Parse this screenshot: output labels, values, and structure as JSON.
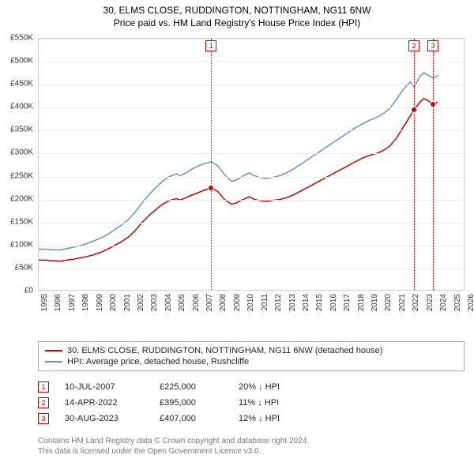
{
  "title": {
    "line1": "30, ELMS CLOSE, RUDDINGTON, NOTTINGHAM, NG11 6NW",
    "line2": "Price paid vs. HM Land Registry's House Price Index (HPI)"
  },
  "chart": {
    "type": "line",
    "background_color": "#ffffff",
    "grid_color": "#eeeeee",
    "border_color": "#cccccc",
    "y": {
      "min": 0,
      "max": 550000,
      "step": 50000,
      "labels": [
        "£0",
        "£50K",
        "£100K",
        "£150K",
        "£200K",
        "£250K",
        "£300K",
        "£350K",
        "£400K",
        "£450K",
        "£500K",
        "£550K"
      ],
      "label_fontsize": 10,
      "label_color": "#333333"
    },
    "x": {
      "min": 1995,
      "max": 2026,
      "step": 1,
      "labels": [
        "1995",
        "1996",
        "1997",
        "1998",
        "1999",
        "2000",
        "2001",
        "2002",
        "2003",
        "2004",
        "2005",
        "2006",
        "2007",
        "2008",
        "2009",
        "2010",
        "2011",
        "2012",
        "2013",
        "2014",
        "2015",
        "2016",
        "2017",
        "2018",
        "2019",
        "2020",
        "2021",
        "2022",
        "2023",
        "2024",
        "2025",
        "2026"
      ],
      "label_fontsize": 10,
      "label_color": "#333333"
    },
    "markers": [
      {
        "num": "1",
        "year": 2007.52,
        "color": "#cc0000"
      },
      {
        "num": "2",
        "year": 2022.28,
        "color": "#cc0000"
      },
      {
        "num": "3",
        "year": 2023.66,
        "color": "#cc0000"
      }
    ],
    "series": [
      {
        "name": "price_paid",
        "color": "#cc0000",
        "width": 1.5,
        "points": [
          [
            1995.0,
            68000
          ],
          [
            1995.5,
            68000
          ],
          [
            1996.0,
            67000
          ],
          [
            1996.5,
            66000
          ],
          [
            1997.0,
            68000
          ],
          [
            1997.5,
            70000
          ],
          [
            1998.0,
            73000
          ],
          [
            1998.5,
            76000
          ],
          [
            1999.0,
            80000
          ],
          [
            1999.5,
            85000
          ],
          [
            2000.0,
            92000
          ],
          [
            2000.5,
            100000
          ],
          [
            2001.0,
            108000
          ],
          [
            2001.5,
            118000
          ],
          [
            2002.0,
            132000
          ],
          [
            2002.5,
            150000
          ],
          [
            2003.0,
            165000
          ],
          [
            2003.5,
            178000
          ],
          [
            2004.0,
            190000
          ],
          [
            2004.5,
            198000
          ],
          [
            2005.0,
            202000
          ],
          [
            2005.3,
            199000
          ],
          [
            2005.7,
            204000
          ],
          [
            2006.0,
            208000
          ],
          [
            2006.5,
            214000
          ],
          [
            2007.0,
            220000
          ],
          [
            2007.52,
            225000
          ],
          [
            2008.0,
            218000
          ],
          [
            2008.5,
            200000
          ],
          [
            2009.0,
            190000
          ],
          [
            2009.3,
            192000
          ],
          [
            2009.7,
            198000
          ],
          [
            2010.0,
            202000
          ],
          [
            2010.3,
            206000
          ],
          [
            2010.7,
            200000
          ],
          [
            2011.0,
            198000
          ],
          [
            2011.5,
            196000
          ],
          [
            2012.0,
            198000
          ],
          [
            2012.5,
            200000
          ],
          [
            2013.0,
            204000
          ],
          [
            2013.5,
            210000
          ],
          [
            2014.0,
            218000
          ],
          [
            2014.5,
            226000
          ],
          [
            2015.0,
            234000
          ],
          [
            2015.5,
            242000
          ],
          [
            2016.0,
            250000
          ],
          [
            2016.5,
            258000
          ],
          [
            2017.0,
            266000
          ],
          [
            2017.5,
            274000
          ],
          [
            2018.0,
            282000
          ],
          [
            2018.5,
            290000
          ],
          [
            2019.0,
            296000
          ],
          [
            2019.5,
            300000
          ],
          [
            2020.0,
            306000
          ],
          [
            2020.5,
            316000
          ],
          [
            2021.0,
            334000
          ],
          [
            2021.5,
            358000
          ],
          [
            2022.0,
            382000
          ],
          [
            2022.28,
            395000
          ],
          [
            2022.7,
            412000
          ],
          [
            2023.0,
            420000
          ],
          [
            2023.3,
            415000
          ],
          [
            2023.66,
            407000
          ],
          [
            2024.0,
            412000
          ]
        ]
      },
      {
        "name": "hpi",
        "color": "#6a8fc7",
        "width": 1.5,
        "points": [
          [
            1995.0,
            92000
          ],
          [
            1995.5,
            92000
          ],
          [
            1996.0,
            91000
          ],
          [
            1996.5,
            90000
          ],
          [
            1997.0,
            93000
          ],
          [
            1997.5,
            96000
          ],
          [
            1998.0,
            100000
          ],
          [
            1998.5,
            104000
          ],
          [
            1999.0,
            110000
          ],
          [
            1999.5,
            116000
          ],
          [
            2000.0,
            124000
          ],
          [
            2000.5,
            134000
          ],
          [
            2001.0,
            144000
          ],
          [
            2001.5,
            156000
          ],
          [
            2002.0,
            172000
          ],
          [
            2002.5,
            192000
          ],
          [
            2003.0,
            210000
          ],
          [
            2003.5,
            226000
          ],
          [
            2004.0,
            240000
          ],
          [
            2004.5,
            250000
          ],
          [
            2005.0,
            256000
          ],
          [
            2005.3,
            252000
          ],
          [
            2005.7,
            258000
          ],
          [
            2006.0,
            264000
          ],
          [
            2006.5,
            272000
          ],
          [
            2007.0,
            278000
          ],
          [
            2007.52,
            282000
          ],
          [
            2008.0,
            274000
          ],
          [
            2008.5,
            254000
          ],
          [
            2009.0,
            240000
          ],
          [
            2009.3,
            242000
          ],
          [
            2009.7,
            248000
          ],
          [
            2010.0,
            254000
          ],
          [
            2010.3,
            258000
          ],
          [
            2010.7,
            252000
          ],
          [
            2011.0,
            248000
          ],
          [
            2011.5,
            246000
          ],
          [
            2012.0,
            248000
          ],
          [
            2012.5,
            252000
          ],
          [
            2013.0,
            258000
          ],
          [
            2013.5,
            266000
          ],
          [
            2014.0,
            276000
          ],
          [
            2014.5,
            286000
          ],
          [
            2015.0,
            296000
          ],
          [
            2015.5,
            306000
          ],
          [
            2016.0,
            316000
          ],
          [
            2016.5,
            326000
          ],
          [
            2017.0,
            336000
          ],
          [
            2017.5,
            346000
          ],
          [
            2018.0,
            356000
          ],
          [
            2018.5,
            364000
          ],
          [
            2019.0,
            372000
          ],
          [
            2019.5,
            378000
          ],
          [
            2020.0,
            386000
          ],
          [
            2020.5,
            398000
          ],
          [
            2021.0,
            418000
          ],
          [
            2021.5,
            440000
          ],
          [
            2022.0,
            456000
          ],
          [
            2022.28,
            444000
          ],
          [
            2022.7,
            468000
          ],
          [
            2023.0,
            476000
          ],
          [
            2023.3,
            470000
          ],
          [
            2023.66,
            464000
          ],
          [
            2024.0,
            470000
          ]
        ]
      }
    ],
    "dots": [
      {
        "year": 2007.52,
        "value": 225000,
        "color": "#cc0000"
      },
      {
        "year": 2022.28,
        "value": 395000,
        "color": "#cc0000"
      },
      {
        "year": 2023.66,
        "value": 407000,
        "color": "#cc0000"
      }
    ]
  },
  "legend": {
    "items": [
      {
        "color": "#cc0000",
        "label": "30, ELMS CLOSE, RUDDINGTON, NOTTINGHAM, NG11 6NW (detached house)"
      },
      {
        "color": "#6a8fc7",
        "label": "HPI: Average price, detached house, Rushcliffe"
      }
    ]
  },
  "events": [
    {
      "num": "1",
      "date": "10-JUL-2007",
      "price": "£225,000",
      "diff": "20% ↓ HPI"
    },
    {
      "num": "2",
      "date": "14-APR-2022",
      "price": "£395,000",
      "diff": "11% ↓ HPI"
    },
    {
      "num": "3",
      "date": "30-AUG-2023",
      "price": "£407,000",
      "diff": "12% ↓ HPI"
    }
  ],
  "footnote": {
    "line1": "Contains HM Land Registry data © Crown copyright and database right 2024.",
    "line2": "This data is licensed under the Open Government Licence v3.0."
  }
}
